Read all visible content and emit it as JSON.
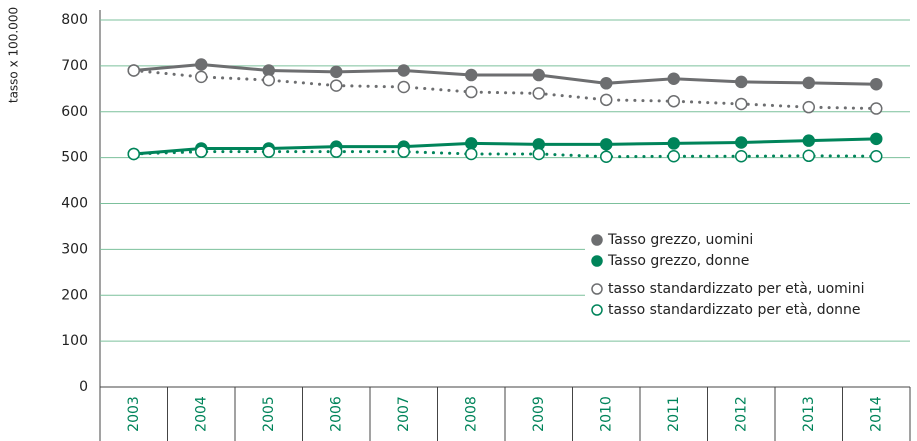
{
  "chart_data": {
    "type": "line",
    "y_label": "tasso x 100.000",
    "categories": [
      "2003",
      "2004",
      "2005",
      "2006",
      "2007",
      "2008",
      "2009",
      "2010",
      "2011",
      "2012",
      "2013",
      "2014"
    ],
    "series": [
      {
        "name": "Tasso grezzo, uomini",
        "color": "#6d6e70",
        "line": "solid",
        "marker": "filled",
        "values": [
          690,
          703,
          690,
          687,
          690,
          680,
          680,
          662,
          672,
          665,
          663,
          660
        ]
      },
      {
        "name": "Tasso grezzo, donne",
        "color": "#00845a",
        "line": "solid",
        "marker": "filled",
        "values": [
          508,
          520,
          520,
          524,
          524,
          531,
          529,
          529,
          531,
          533,
          537,
          541
        ]
      },
      {
        "name": "tasso standardizzato per età, uomini",
        "color": "#6d6e70",
        "line": "dotted",
        "marker": "open",
        "values": [
          690,
          676,
          669,
          657,
          654,
          643,
          640,
          626,
          623,
          617,
          610,
          607
        ]
      },
      {
        "name": "tasso standardizzato per età, donne",
        "color": "#00845a",
        "line": "dotted",
        "marker": "open",
        "values": [
          508,
          513,
          513,
          513,
          513,
          508,
          508,
          502,
          503,
          503,
          504,
          503
        ]
      }
    ],
    "ylim": [
      0,
      800
    ],
    "yticks": [
      0,
      100,
      200,
      300,
      400,
      500,
      600,
      700,
      800
    ],
    "grid": true
  }
}
